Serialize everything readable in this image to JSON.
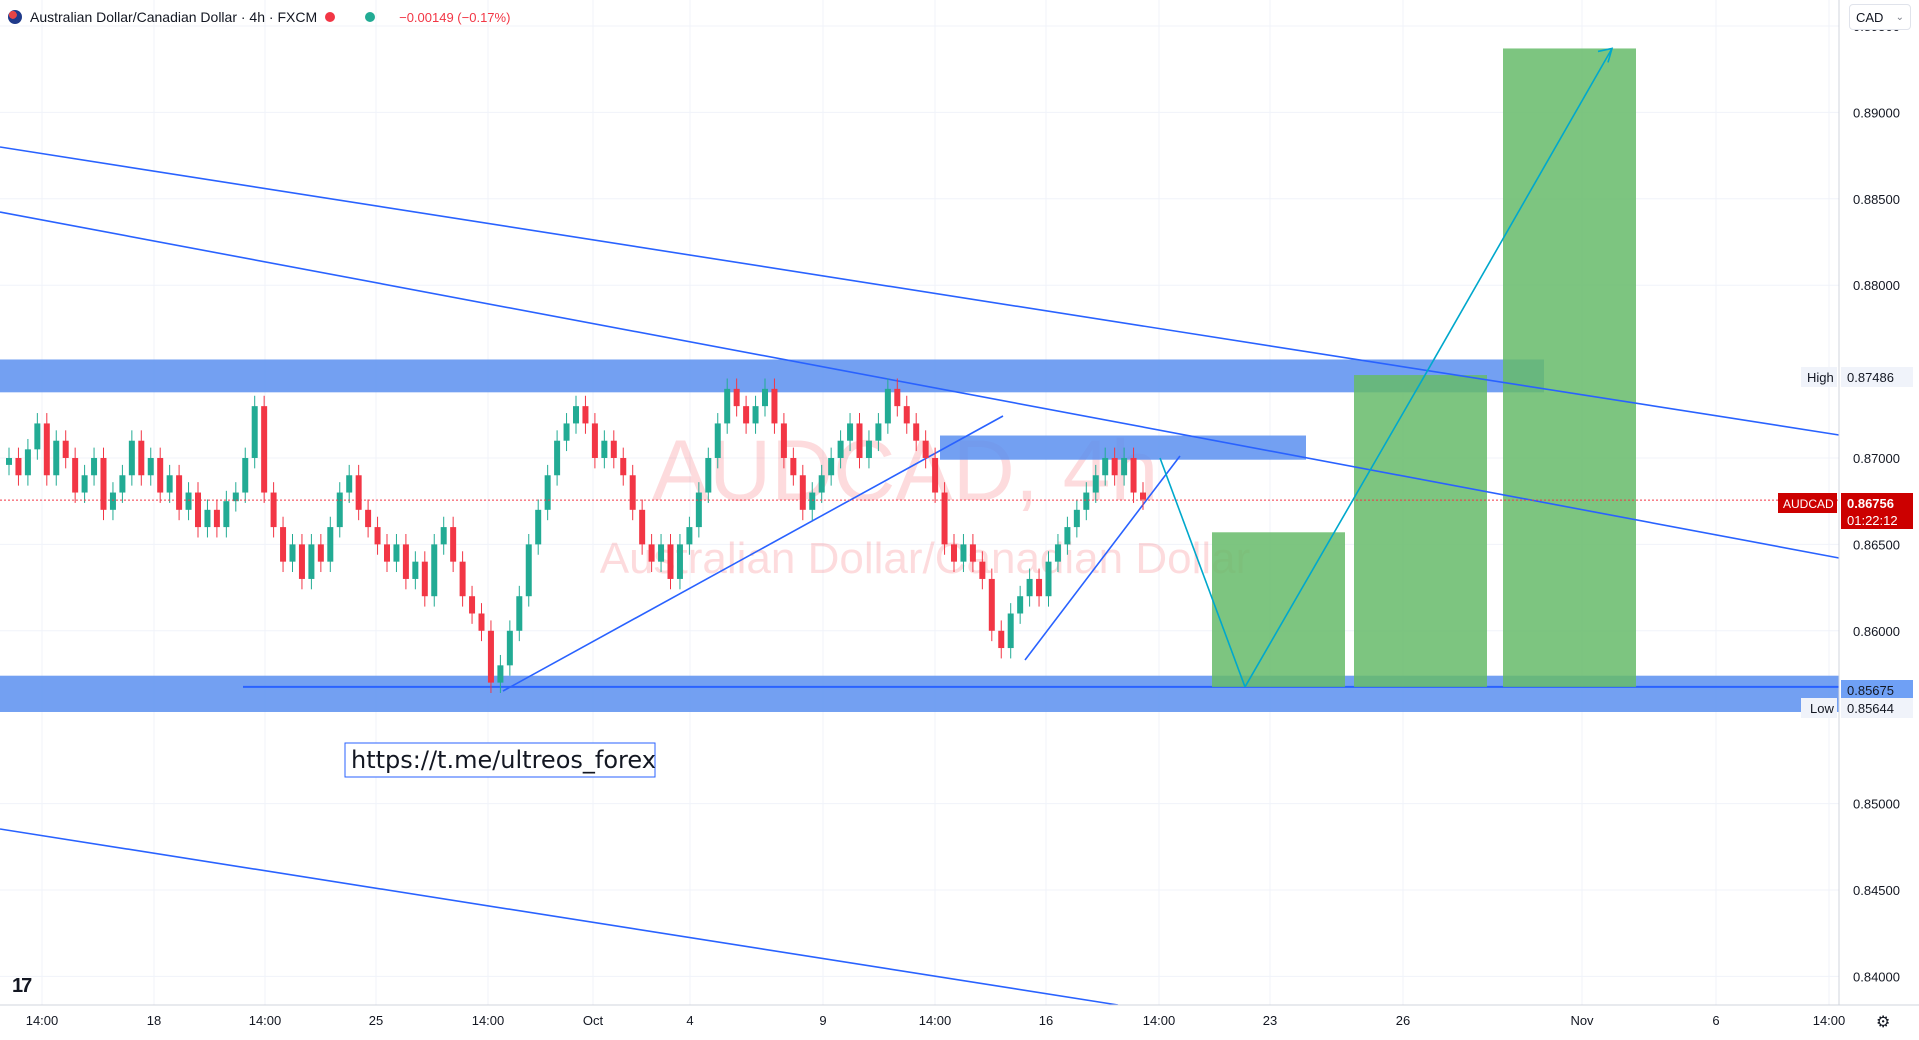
{
  "header": {
    "symbol_title": "Australian Dollar/Canadian Dollar · 4h · FXCM",
    "change_text": "−0.00149 (−0.17%)"
  },
  "currency_select": {
    "value": "CAD"
  },
  "watermark": {
    "ticker": "AUDCAD, 4h",
    "name": "Australian Dollar/Canadian Dollar"
  },
  "link_box": {
    "text": "https://t.me/ultreos_forex"
  },
  "price_axis": {
    "ticks": [
      "0.89500",
      "0.89000",
      "0.88500",
      "0.88000",
      "0.87000",
      "0.86500",
      "0.86000",
      "0.85000",
      "0.84500",
      "0.84000"
    ]
  },
  "price_labels": {
    "high_label": "High",
    "high_value": "0.87486",
    "low_label": "Low",
    "low_value": "0.85644",
    "symbol_label": "AUDCAD",
    "current_price": "0.86756",
    "countdown": "01:22:12",
    "level_value": "0.85675"
  },
  "time_axis": {
    "ticks": [
      "14:00",
      "18",
      "14:00",
      "25",
      "14:00",
      "Oct",
      "4",
      "9",
      "14:00",
      "16",
      "14:00",
      "23",
      "26",
      "Nov",
      "6",
      "14:00"
    ]
  },
  "colors": {
    "bull": "#22ab94",
    "bear": "#f23645",
    "zone": "#5b8ff0",
    "target": "#66bb6a",
    "trendline": "#2962ff",
    "arrow": "#00a8cc"
  },
  "chart_data": {
    "type": "candlestick",
    "symbol": "AUDCAD",
    "interval": "4h",
    "ylim": [
      0.8395,
      0.895
    ],
    "current_price": 0.86756,
    "high": 0.87486,
    "low": 0.85644,
    "close_path": [
      0.87,
      0.869,
      0.8705,
      0.872,
      0.869,
      0.871,
      0.87,
      0.868,
      0.869,
      0.87,
      0.867,
      0.868,
      0.869,
      0.871,
      0.869,
      0.87,
      0.868,
      0.869,
      0.867,
      0.868,
      0.866,
      0.867,
      0.866,
      0.8675,
      0.868,
      0.87,
      0.873,
      0.868,
      0.866,
      0.864,
      0.865,
      0.863,
      0.865,
      0.864,
      0.866,
      0.868,
      0.869,
      0.867,
      0.866,
      0.865,
      0.864,
      0.865,
      0.863,
      0.864,
      0.862,
      0.865,
      0.866,
      0.864,
      0.862,
      0.861,
      0.86,
      0.857,
      0.858,
      0.86,
      0.862,
      0.865,
      0.867,
      0.869,
      0.871,
      0.872,
      0.873,
      0.872,
      0.87,
      0.871,
      0.87,
      0.869,
      0.867,
      0.865,
      0.864,
      0.865,
      0.863,
      0.865,
      0.866,
      0.868,
      0.87,
      0.872,
      0.874,
      0.873,
      0.872,
      0.873,
      0.874,
      0.872,
      0.87,
      0.869,
      0.867,
      0.868,
      0.869,
      0.87,
      0.871,
      0.872,
      0.87,
      0.871,
      0.872,
      0.874,
      0.873,
      0.872,
      0.871,
      0.87,
      0.868,
      0.865,
      0.864,
      0.865,
      0.864,
      0.863,
      0.86,
      0.859,
      0.861,
      0.862,
      0.863,
      0.862,
      0.864,
      0.865,
      0.866,
      0.867,
      0.868,
      0.869,
      0.87,
      0.869,
      0.87,
      0.868,
      0.8676
    ],
    "zones": [
      {
        "name": "resistance",
        "from": 0.8738,
        "to": 0.8757
      },
      {
        "name": "mid-resistance",
        "from": 0.8699,
        "to": 0.8713
      },
      {
        "name": "support",
        "from": 0.8553,
        "to": 0.8574
      }
    ],
    "support_line": 0.85675,
    "targets_top": [
      0.8657,
      0.8748,
      0.8937
    ]
  }
}
